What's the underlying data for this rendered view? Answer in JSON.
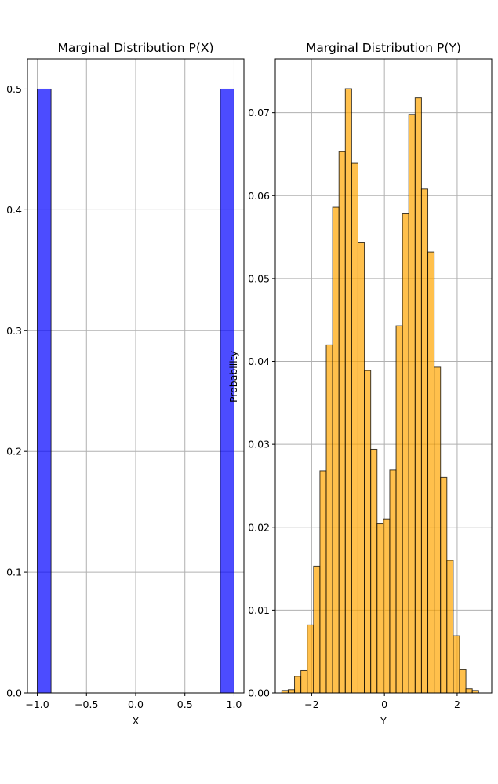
{
  "chart_data": [
    {
      "type": "bar",
      "title": "Marginal Distribution P(X)",
      "xlabel": "X",
      "ylabel": "",
      "xlim": [
        -1.1,
        1.1
      ],
      "ylim": [
        0,
        0.525
      ],
      "xticks": [
        -1.0,
        -0.5,
        0.0,
        0.5,
        1.0
      ],
      "xtick_labels": [
        "−1.0",
        "−0.5",
        "0.0",
        "0.5",
        "1.0"
      ],
      "yticks": [
        0.0,
        0.1,
        0.2,
        0.3,
        0.4,
        0.5
      ],
      "ytick_labels": [
        "0.0",
        "0.1",
        "0.2",
        "0.3",
        "0.4",
        "0.5"
      ],
      "grid": true,
      "bar_color": "#0000ff",
      "bar_opacity": 0.7,
      "edge_color": "#000000",
      "bins": [
        {
          "x0": -1.0,
          "x1": -0.86,
          "value": 0.5
        },
        {
          "x0": 0.86,
          "x1": 1.0,
          "value": 0.5
        }
      ]
    },
    {
      "type": "bar",
      "title": "Marginal Distribution P(Y)",
      "xlabel": "Y",
      "ylabel": "Probability",
      "xlim": [
        -3.0,
        2.95
      ],
      "ylim": [
        0,
        0.0765
      ],
      "xticks": [
        -2,
        0,
        2
      ],
      "xtick_labels": [
        "−2",
        "0",
        "2"
      ],
      "yticks": [
        0.0,
        0.01,
        0.02,
        0.03,
        0.04,
        0.05,
        0.06,
        0.07
      ],
      "ytick_labels": [
        "0.00",
        "0.01",
        "0.02",
        "0.03",
        "0.04",
        "0.05",
        "0.06",
        "0.07"
      ],
      "grid": true,
      "bar_color": "#ffa500",
      "bar_opacity": 0.7,
      "edge_color": "#000000",
      "bin_start": -2.82,
      "bin_width": 0.1745,
      "values": [
        0.0003,
        0.0004,
        0.002,
        0.0027,
        0.0082,
        0.0153,
        0.0268,
        0.042,
        0.0586,
        0.0653,
        0.0729,
        0.0639,
        0.0543,
        0.0389,
        0.0294,
        0.0204,
        0.021,
        0.0269,
        0.0443,
        0.0578,
        0.0698,
        0.0718,
        0.0608,
        0.0532,
        0.0393,
        0.026,
        0.016,
        0.0069,
        0.0028,
        0.0005,
        0.0003
      ]
    }
  ]
}
